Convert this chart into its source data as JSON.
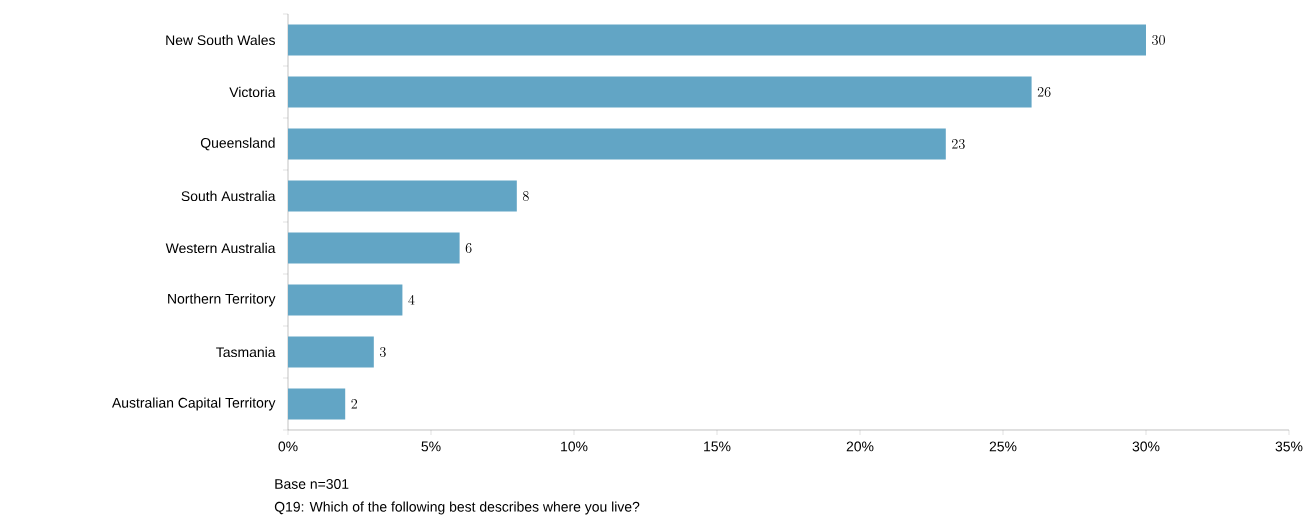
{
  "chart_data": {
    "type": "bar",
    "orientation": "horizontal",
    "categories": [
      "New South Wales",
      "Victoria",
      "Queensland",
      "South Australia",
      "Western Australia",
      "Northern Territory",
      "Tasmania",
      "Australian Capital Territory"
    ],
    "values": [
      30,
      26,
      23,
      8,
      6,
      4,
      3,
      2
    ],
    "color": "#62a5c5",
    "data_labels": true,
    "xlim": [
      0,
      35
    ],
    "xticks": [
      {
        "value": 0,
        "label": "0%"
      },
      {
        "value": 5,
        "label": "5%"
      },
      {
        "value": 10,
        "label": "10%"
      },
      {
        "value": 15,
        "label": "15%"
      },
      {
        "value": 20,
        "label": "20%"
      },
      {
        "value": 25,
        "label": "25%"
      },
      {
        "value": 30,
        "label": "30%"
      },
      {
        "value": 35,
        "label": "35%"
      }
    ],
    "annotations": [
      "Base n=301",
      "Q19: Which of the following  best describes where you live?"
    ]
  }
}
